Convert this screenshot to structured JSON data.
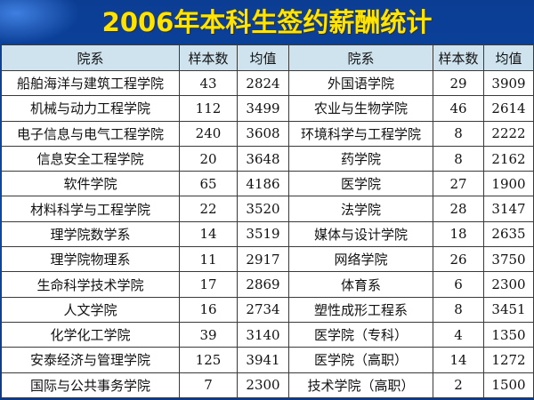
{
  "title": "2006年本科生签约薪酬统计",
  "headers": [
    "院系",
    "样本数",
    "均值",
    "院系",
    "样本数",
    "均值"
  ],
  "rows": [
    [
      "船舶海洋与建筑工程学院",
      "43",
      "2824",
      "外国语学院",
      "29",
      "3909"
    ],
    [
      "机械与动力工程学院",
      "112",
      "3499",
      "农业与生物学院",
      "46",
      "2614"
    ],
    [
      "电子信息与电气工程学院",
      "240",
      "3608",
      "环境科学与工程学院",
      "8",
      "2222"
    ],
    [
      "信息安全工程学院",
      "20",
      "3648",
      "药学院",
      "8",
      "2162"
    ],
    [
      "软件学院",
      "65",
      "4186",
      "医学院",
      "27",
      "1900"
    ],
    [
      "材料科学与工程学院",
      "22",
      "3520",
      "法学院",
      "28",
      "3147"
    ],
    [
      "理学院数学系",
      "14",
      "3519",
      "媒体与设计学院",
      "18",
      "2635"
    ],
    [
      "理学院物理系",
      "11",
      "2917",
      "网络学院",
      "26",
      "3750"
    ],
    [
      "生命科学技术学院",
      "17",
      "2869",
      "体育系",
      "6",
      "2300"
    ],
    [
      "人文学院",
      "16",
      "2734",
      "塑性成形工程系",
      "8",
      "3451"
    ],
    [
      "化学化工学院",
      "39",
      "3140",
      "医学院（专科）",
      "4",
      "1350"
    ],
    [
      "安泰经济与管理学院",
      "125",
      "3941",
      "医学院（高职）",
      "14",
      "1272"
    ],
    [
      "国际与公共事务学院",
      "7",
      "2300",
      "技术学院（高职）",
      "2",
      "1500"
    ]
  ]
}
